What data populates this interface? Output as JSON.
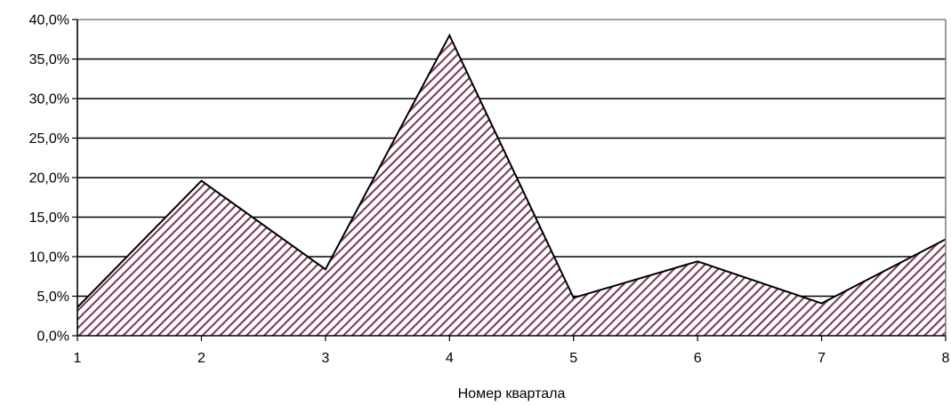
{
  "chart_data": {
    "type": "area",
    "title": "",
    "xlabel": "Номер квартала",
    "ylabel": "",
    "x": [
      1,
      2,
      3,
      4,
      5,
      6,
      7,
      8
    ],
    "x_tick_labels": [
      "1",
      "2",
      "3",
      "4",
      "5",
      "6",
      "7",
      "8"
    ],
    "series": [
      {
        "values": [
          3.6,
          19.6,
          8.4,
          38.0,
          4.8,
          9.4,
          4.1,
          12.2
        ]
      }
    ],
    "ylim": [
      0,
      40
    ],
    "y_ticks": [
      0,
      5,
      10,
      15,
      20,
      25,
      30,
      35,
      40
    ],
    "y_tick_labels": [
      "0,0%",
      "5,0%",
      "10,0%",
      "15,0%",
      "20,0%",
      "25,0%",
      "30,0%",
      "35,0%",
      "40,0%"
    ],
    "grid": true,
    "legend": "none",
    "colors": {
      "area_stripe": "#7a3b5c",
      "area_background": "#ffffff",
      "outline": "#000000",
      "gridline": "#000000",
      "frame": "#808080"
    },
    "fill_pattern": "diagonal-hatch"
  }
}
